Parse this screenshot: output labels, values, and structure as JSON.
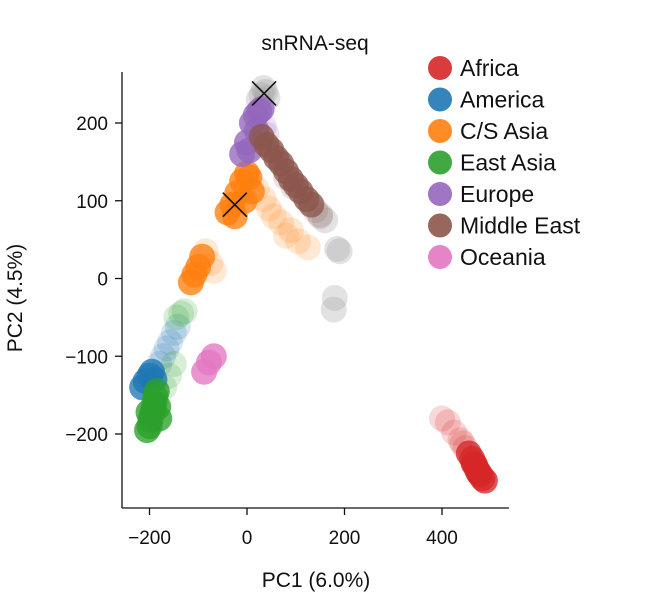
{
  "chart_data": {
    "type": "scatter",
    "title": "snRNA-seq",
    "xlabel": "PC1 (6.0%)",
    "ylabel": "PC2 (4.5%)",
    "xlim": [
      -240,
      510
    ],
    "ylim": [
      -290,
      270
    ],
    "xticks": [
      -200,
      0,
      200,
      400
    ],
    "yticks": [
      -200,
      -100,
      0,
      100,
      200
    ],
    "grid": false,
    "legend_position": "top-right",
    "series": [
      {
        "name": "Africa",
        "color": "#d62728",
        "points": [
          [
            455,
            -225
          ],
          [
            462,
            -232
          ],
          [
            468,
            -240
          ],
          [
            472,
            -246
          ],
          [
            478,
            -252
          ],
          [
            483,
            -257
          ],
          [
            488,
            -260
          ],
          [
            465,
            -238
          ],
          [
            475,
            -250
          ]
        ],
        "faded_points": [
          [
            400,
            -180
          ],
          [
            412,
            -185
          ],
          [
            425,
            -198
          ],
          [
            438,
            -208
          ],
          [
            448,
            -218
          ],
          [
            442,
            -212
          ]
        ]
      },
      {
        "name": "America",
        "color": "#1f77b4",
        "points": [
          [
            -215,
            -140
          ],
          [
            -208,
            -132
          ],
          [
            -200,
            -125
          ],
          [
            -195,
            -120
          ],
          [
            -190,
            -130
          ]
        ],
        "faded_points": [
          [
            -180,
            -110
          ],
          [
            -172,
            -100
          ],
          [
            -165,
            -90
          ],
          [
            -158,
            -82
          ],
          [
            -150,
            -70
          ],
          [
            -142,
            -62
          ]
        ]
      },
      {
        "name": "C/S Asia",
        "color": "#ff7f0e",
        "points": [
          [
            -40,
            85
          ],
          [
            -30,
            95
          ],
          [
            -20,
            110
          ],
          [
            -10,
            125
          ],
          [
            0,
            135
          ],
          [
            5,
            130
          ],
          [
            10,
            112
          ],
          [
            -5,
            100
          ],
          [
            -25,
            80
          ],
          [
            -115,
            -5
          ],
          [
            -108,
            5
          ],
          [
            -100,
            15
          ],
          [
            -92,
            28
          ]
        ],
        "faded_points": [
          [
            -85,
            35
          ],
          [
            -75,
            20
          ],
          [
            -68,
            10
          ],
          [
            20,
            115
          ],
          [
            35,
            102
          ],
          [
            45,
            90
          ],
          [
            55,
            80
          ],
          [
            70,
            72
          ],
          [
            90,
            62
          ],
          [
            105,
            48
          ],
          [
            125,
            40
          ],
          [
            80,
            55
          ]
        ]
      },
      {
        "name": "East Asia",
        "color": "#2ca02c",
        "points": [
          [
            -205,
            -195
          ],
          [
            -200,
            -190
          ],
          [
            -198,
            -182
          ],
          [
            -195,
            -175
          ],
          [
            -192,
            -168
          ],
          [
            -190,
            -160
          ],
          [
            -188,
            -152
          ],
          [
            -185,
            -145
          ],
          [
            -182,
            -165
          ],
          [
            -180,
            -180
          ],
          [
            -202,
            -172
          ]
        ],
        "faded_points": [
          [
            -170,
            -140
          ],
          [
            -160,
            -125
          ],
          [
            -150,
            -110
          ],
          [
            -145,
            -50
          ],
          [
            -135,
            -45
          ],
          [
            -128,
            -42
          ]
        ]
      },
      {
        "name": "Europe",
        "color": "#9467bd",
        "points": [
          [
            -10,
            160
          ],
          [
            0,
            175
          ],
          [
            10,
            200
          ],
          [
            18,
            210
          ],
          [
            25,
            215
          ],
          [
            30,
            218
          ],
          [
            20,
            190
          ],
          [
            5,
            165
          ]
        ],
        "faded_points": [
          [
            35,
            195
          ],
          [
            40,
            185
          ]
        ]
      },
      {
        "name": "Middle East",
        "color": "#8c564b",
        "points": [
          [
            30,
            182
          ],
          [
            40,
            172
          ],
          [
            50,
            165
          ],
          [
            60,
            155
          ],
          [
            70,
            148
          ],
          [
            80,
            138
          ],
          [
            90,
            128
          ],
          [
            100,
            120
          ],
          [
            110,
            112
          ],
          [
            122,
            102
          ],
          [
            132,
            95
          ]
        ],
        "faded_points": [
          [
            140,
            88
          ],
          [
            150,
            82
          ],
          [
            80,
            130
          ],
          [
            95,
            118
          ]
        ]
      },
      {
        "name": "Oceania",
        "color": "#e377c2",
        "points": [
          [
            -88,
            -120
          ],
          [
            -78,
            -108
          ],
          [
            -68,
            -100
          ]
        ],
        "faded_points": []
      }
    ],
    "unlabeled_gray_points": [
      [
        38,
        240
      ],
      [
        30,
        236
      ],
      [
        42,
        232
      ],
      [
        24,
        230
      ],
      [
        34,
        245
      ],
      [
        150,
        80
      ],
      [
        160,
        75
      ],
      [
        185,
        38
      ],
      [
        190,
        35
      ],
      [
        180,
        -25
      ],
      [
        178,
        -40
      ]
    ],
    "x_markers": [
      [
        35,
        238
      ],
      [
        -25,
        95
      ]
    ]
  }
}
